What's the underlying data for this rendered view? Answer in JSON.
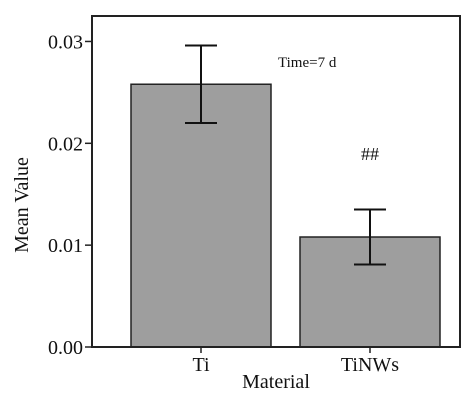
{
  "chart_data": {
    "type": "bar",
    "categories": [
      "Ti",
      "TiNWs"
    ],
    "values": [
      0.0258,
      0.0108
    ],
    "errors": [
      0.0038,
      0.0027
    ],
    "ylim": [
      0,
      0.0325
    ],
    "yticks": [
      "0.00",
      "0.01",
      "0.02",
      "0.03"
    ],
    "ytick_values": [
      0,
      0.01,
      0.02,
      0.03
    ],
    "xlabel": "Material",
    "ylabel": "Mean Value",
    "annotations": {
      "time": "Time=7 d",
      "significance": "##"
    },
    "colors": {
      "bar_fill": "#9e9e9e",
      "bar_stroke": "#222222",
      "axis": "#222222"
    },
    "grid": false
  }
}
